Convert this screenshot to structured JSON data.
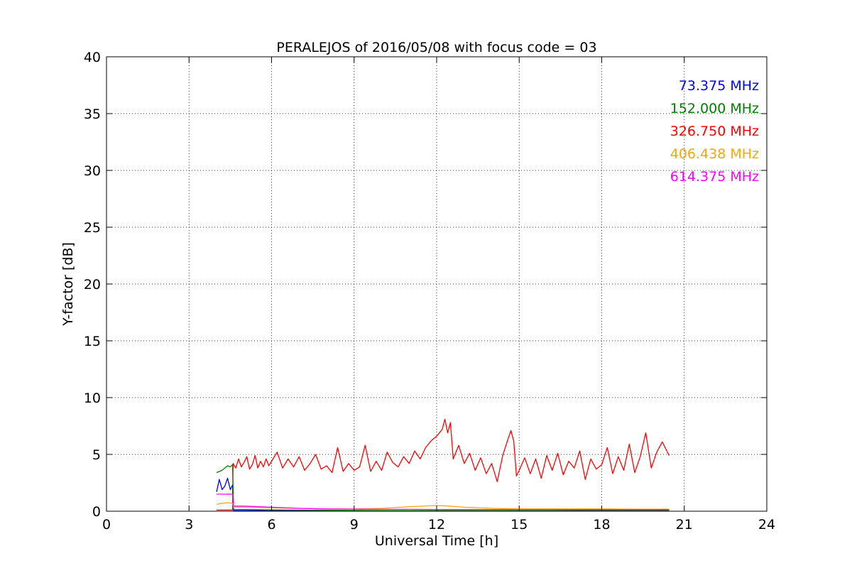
{
  "chart_data": {
    "type": "line",
    "title": "PERALEJOS of 2016/05/08 with focus code = 03",
    "xlabel": "Universal Time [h]",
    "ylabel": "Y-factor [dB]",
    "xlim": [
      0,
      24
    ],
    "ylim": [
      0,
      40
    ],
    "xticks": [
      0,
      3,
      6,
      9,
      12,
      15,
      18,
      21,
      24
    ],
    "yticks": [
      0,
      5,
      10,
      15,
      20,
      25,
      30,
      35,
      40
    ],
    "xtick_labels": [
      "0",
      "3",
      "6",
      "9",
      "12",
      "15",
      "18",
      "21",
      "24"
    ],
    "ytick_labels": [
      "0",
      "5",
      "10",
      "15",
      "20",
      "25",
      "30",
      "35",
      "40"
    ],
    "grid": true,
    "legend_position": "top-right",
    "series": [
      {
        "name": "73.375 MHz",
        "color": "#0000ff",
        "x": [
          4.0,
          4.1,
          4.2,
          4.3,
          4.4,
          4.5,
          4.58,
          4.62,
          5.0,
          6.0,
          8.0,
          10.0,
          12.0,
          14.0,
          16.0,
          18.0,
          20.45
        ],
        "y": [
          1.7,
          2.8,
          1.9,
          2.2,
          2.9,
          1.9,
          2.3,
          0.05,
          0.05,
          0.05,
          0.05,
          0.05,
          0.05,
          0.05,
          0.05,
          0.05,
          0.05
        ]
      },
      {
        "name": "152.000 MHz",
        "color": "#008000",
        "x": [
          4.0,
          4.1,
          4.2,
          4.3,
          4.4,
          4.5,
          4.58,
          4.62,
          5.0,
          6.0,
          7.0,
          8.0,
          10.0,
          12.0,
          14.0,
          16.0,
          18.0,
          20.45
        ],
        "y": [
          3.4,
          3.5,
          3.6,
          3.8,
          4.0,
          3.9,
          4.1,
          0.15,
          0.15,
          0.12,
          0.1,
          0.08,
          0.05,
          0.05,
          0.05,
          0.05,
          0.05,
          0.05
        ]
      },
      {
        "name": "326.750 MHz",
        "color": "#ff0000",
        "x": [
          4.0,
          4.58,
          4.6,
          4.7,
          4.8,
          4.9,
          5.0,
          5.1,
          5.2,
          5.3,
          5.4,
          5.5,
          5.6,
          5.7,
          5.8,
          5.9,
          6.0,
          6.2,
          6.4,
          6.6,
          6.8,
          7.0,
          7.2,
          7.4,
          7.6,
          7.8,
          8.0,
          8.2,
          8.4,
          8.6,
          8.8,
          9.0,
          9.2,
          9.4,
          9.6,
          9.8,
          10.0,
          10.2,
          10.4,
          10.6,
          10.8,
          11.0,
          11.2,
          11.4,
          11.6,
          11.8,
          12.0,
          12.2,
          12.3,
          12.4,
          12.5,
          12.6,
          12.8,
          13.0,
          13.2,
          13.4,
          13.6,
          13.8,
          14.0,
          14.2,
          14.4,
          14.6,
          14.7,
          14.8,
          14.9,
          15.0,
          15.2,
          15.4,
          15.6,
          15.8,
          16.0,
          16.2,
          16.4,
          16.6,
          16.8,
          17.0,
          17.2,
          17.4,
          17.6,
          17.8,
          18.0,
          18.2,
          18.4,
          18.6,
          18.8,
          19.0,
          19.2,
          19.4,
          19.6,
          19.8,
          20.0,
          20.2,
          20.45
        ],
        "y": [
          0.1,
          0.1,
          4.2,
          3.8,
          4.6,
          3.9,
          4.3,
          4.8,
          3.7,
          4.1,
          4.9,
          3.8,
          4.4,
          3.9,
          4.6,
          4.0,
          4.4,
          5.2,
          3.8,
          4.6,
          3.9,
          4.8,
          3.6,
          4.2,
          5.0,
          3.7,
          4.0,
          3.4,
          5.6,
          3.5,
          4.2,
          3.6,
          3.9,
          5.8,
          3.5,
          4.4,
          3.6,
          5.2,
          4.3,
          3.9,
          4.8,
          4.2,
          5.3,
          4.6,
          5.6,
          6.2,
          6.6,
          7.2,
          8.1,
          6.9,
          7.8,
          4.6,
          5.8,
          4.2,
          5.1,
          3.6,
          4.7,
          3.3,
          4.2,
          2.6,
          4.9,
          6.4,
          7.1,
          6.2,
          3.1,
          3.6,
          4.7,
          3.3,
          4.6,
          2.9,
          4.9,
          3.6,
          5.1,
          3.2,
          4.4,
          3.8,
          5.3,
          2.8,
          4.6,
          3.7,
          4.1,
          5.6,
          3.3,
          4.8,
          3.6,
          5.9,
          3.4,
          4.8,
          6.9,
          3.8,
          5.2,
          6.1,
          4.9
        ]
      },
      {
        "name": "406.438 MHz",
        "color": "#ffa500",
        "x": [
          4.0,
          4.2,
          4.4,
          4.58,
          4.62,
          5.0,
          6.0,
          7.0,
          8.0,
          9.0,
          10.0,
          11.0,
          12.0,
          12.5,
          13.0,
          14.0,
          15.0,
          16.0,
          17.0,
          18.0,
          19.0,
          20.0,
          20.45
        ],
        "y": [
          0.6,
          0.7,
          0.75,
          0.7,
          0.35,
          0.35,
          0.3,
          0.25,
          0.2,
          0.2,
          0.25,
          0.4,
          0.5,
          0.45,
          0.35,
          0.25,
          0.2,
          0.2,
          0.2,
          0.2,
          0.18,
          0.18,
          0.18
        ]
      },
      {
        "name": "614.375 MHz",
        "color": "#ff00ff",
        "x": [
          4.0,
          4.2,
          4.4,
          4.58,
          4.62,
          5.0,
          6.0,
          7.0,
          8.0,
          9.0,
          10.0,
          11.0,
          12.0,
          13.0,
          14.0,
          15.0,
          16.0,
          17.0,
          18.0,
          19.0,
          20.0,
          20.45
        ],
        "y": [
          1.5,
          1.5,
          1.5,
          1.5,
          0.45,
          0.45,
          0.35,
          0.25,
          0.2,
          0.18,
          0.16,
          0.16,
          0.15,
          0.15,
          0.15,
          0.15,
          0.15,
          0.14,
          0.14,
          0.14,
          0.14,
          0.14
        ]
      }
    ]
  }
}
